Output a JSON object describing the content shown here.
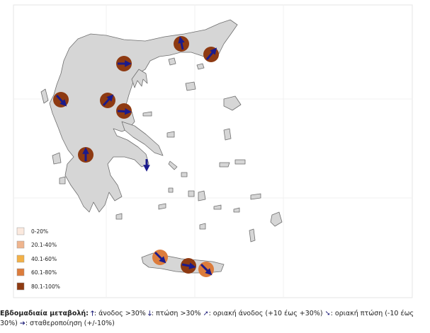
{
  "legend": {
    "items": [
      {
        "label": "0-20%",
        "color": "#fbe9de"
      },
      {
        "label": "20.1-40%",
        "color": "#efb58e"
      },
      {
        "label": "40.1-60%",
        "color": "#f3b147"
      },
      {
        "label": "60.1-80%",
        "color": "#dc7c3c"
      },
      {
        "label": "80.1-100%",
        "color": "#8e3a12"
      }
    ]
  },
  "colors": {
    "land": "#d6d6d6",
    "coast": "#6e6e6e",
    "arrow": "#1b1b8c",
    "panel_border": "#aaaaaa"
  },
  "regions": [
    {
      "name": "evros_west",
      "category": "80.1-100%",
      "arrow": "diagonal-up"
    },
    {
      "name": "evros",
      "category": "80.1-100%",
      "arrow": "diagonal-up"
    },
    {
      "name": "thessaloniki",
      "category": "80.1-100%",
      "arrow": "right"
    },
    {
      "name": "ioannina",
      "category": "80.1-100%",
      "arrow": "diagonal-down"
    },
    {
      "name": "larisa",
      "category": "80.1-100%",
      "arrow": "diagonal-up"
    },
    {
      "name": "magnesia",
      "category": "80.1-100%",
      "arrow": "right"
    },
    {
      "name": "aitoloakarnania",
      "category": "80.1-100%",
      "arrow": "up"
    },
    {
      "name": "athens",
      "category": "none",
      "arrow": "down"
    },
    {
      "name": "crete_west",
      "category": "60.1-80%",
      "arrow": "diagonal-down"
    },
    {
      "name": "crete_center",
      "category": "80.1-100%",
      "arrow": "right"
    },
    {
      "name": "crete_east",
      "category": "60.1-80%",
      "arrow": "diagonal-down"
    }
  ],
  "caption": {
    "title": "Εβδομαδιαία μεταβολή:",
    "up_sym": "🡑",
    "up_text": ": άνοδος >30%",
    "down_sym": "🡓",
    "down_text": ": πτώση >30%",
    "diag_up_sym": "➚",
    "diag_up_text": ": οριακή άνοδος (+10 έως +30%)",
    "diag_down_sym": "➘",
    "diag_down_text": ": οριακή πτώση  (-10 έως",
    "line2_start": "30%)",
    "right_sym": "➔",
    "right_text": ":  σταθεροποίηση (+/-10%)"
  }
}
